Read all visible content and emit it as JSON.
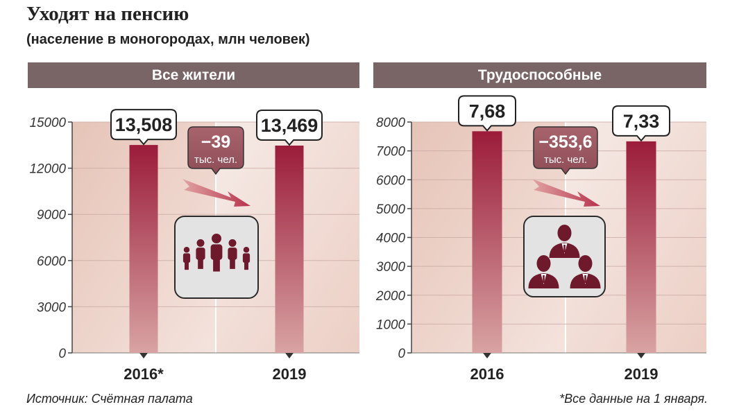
{
  "title": "Уходят на пенсию",
  "subtitle": "(население в моногородах, млн человек)",
  "source": "Источник: Счётная палата",
  "footnote": "*Все данные на 1 января.",
  "colors": {
    "header": "#7a6566",
    "bar_top": "#9b1c3a",
    "bar_bottom": "#d8a3a3",
    "delta_bubble": "#9c5a64",
    "icon": "#6e1a2c"
  },
  "chart_data": [
    {
      "type": "bar",
      "title": "Все жители",
      "categories": [
        "2016*",
        "2019"
      ],
      "values": [
        13508,
        13469
      ],
      "value_labels": [
        "13,508",
        "13,469"
      ],
      "yticks": [
        "0",
        "3000",
        "6000",
        "9000",
        "12000",
        "15000"
      ],
      "ylim": [
        0,
        15000
      ],
      "delta": {
        "value": "−39",
        "unit": "тыс. чел."
      },
      "icon": "people-group-icon",
      "grid": true
    },
    {
      "type": "bar",
      "title": "Трудоспособные",
      "categories": [
        "2016",
        "2019"
      ],
      "values": [
        7680,
        7330
      ],
      "value_labels": [
        "7,68",
        "7,33"
      ],
      "yticks": [
        "0",
        "1000",
        "2000",
        "3000",
        "4000",
        "5000",
        "6000",
        "7000",
        "8000"
      ],
      "ylim": [
        0,
        8000
      ],
      "delta": {
        "value": "−353,6",
        "unit": "тыс. чел."
      },
      "icon": "business-team-icon",
      "grid": true
    }
  ]
}
